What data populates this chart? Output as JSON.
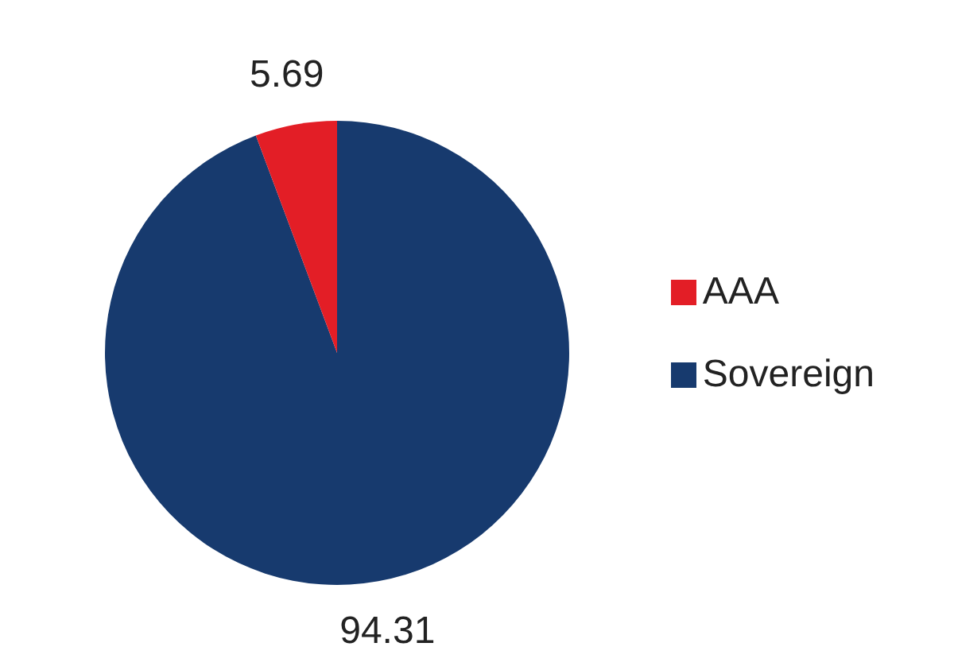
{
  "chart_data": {
    "type": "pie",
    "categories": [
      "Sovereign",
      "AAA"
    ],
    "values": [
      94.31,
      5.69
    ],
    "colors": [
      "#173a6e",
      "#e31e26"
    ],
    "data_labels": true,
    "legend": "right"
  }
}
